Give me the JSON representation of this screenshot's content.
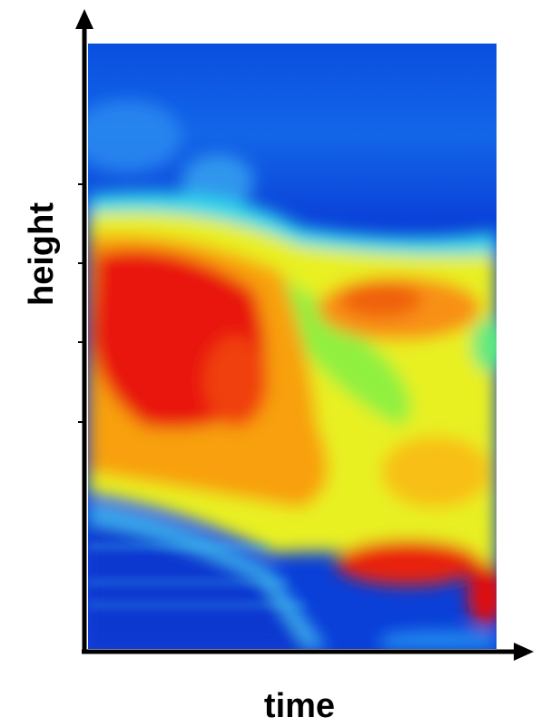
{
  "axes": {
    "x_label": "time",
    "y_label": "height"
  }
}
